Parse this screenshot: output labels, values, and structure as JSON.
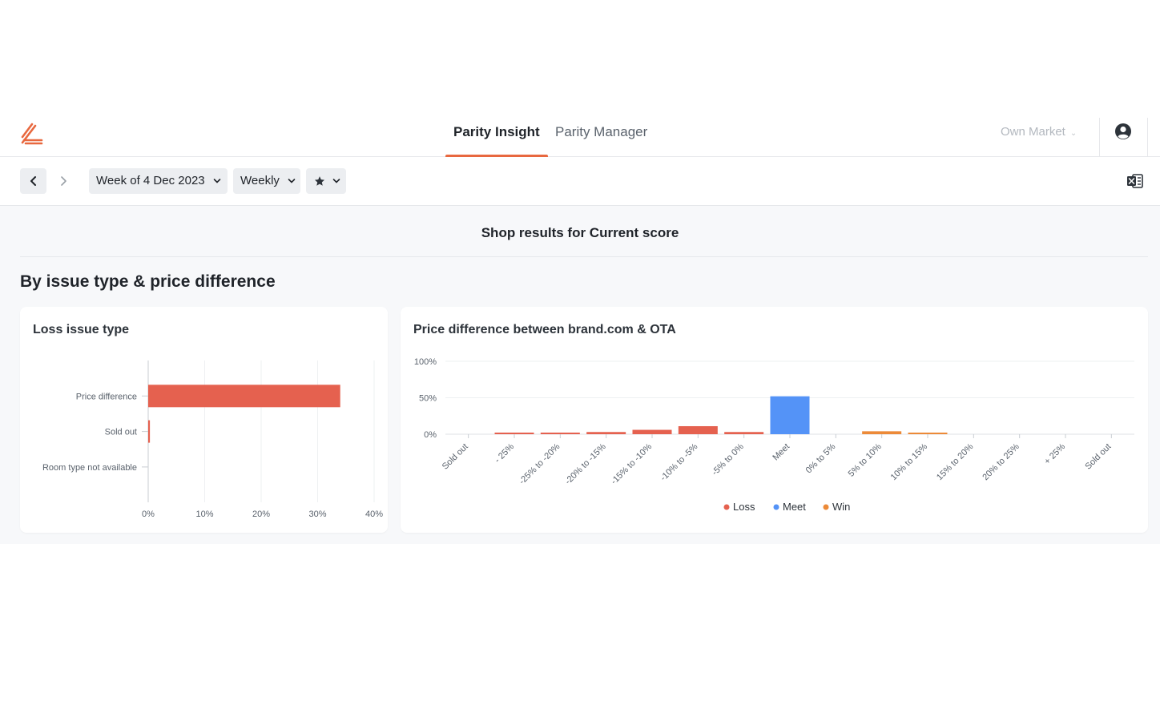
{
  "header": {
    "logo_icon": "brand-logo-icon",
    "tabs": [
      {
        "label": "Parity Insight",
        "active": true
      },
      {
        "label": "Parity Manager",
        "active": false
      }
    ],
    "market_select": "Own Market",
    "avatar_icon": "user-circle-icon"
  },
  "toolbar": {
    "prev_icon": "chevron-left-icon",
    "next_icon": "chevron-right-icon",
    "week_select": "Week of 4 Dec 2023",
    "period_select": "Weekly",
    "favorite_icon": "star-icon",
    "export_icon": "excel-export-icon"
  },
  "main": {
    "results_title": "Shop results for Current score",
    "section_title": "By issue type & price difference"
  },
  "colors": {
    "accent": "#e8683f",
    "loss": "#e5614f",
    "meet": "#5493f7",
    "win": "#ec8a38"
  },
  "chart_data": [
    {
      "type": "bar",
      "orientation": "horizontal",
      "title": "Loss issue type",
      "categories": [
        "Price difference",
        "Sold out",
        "Room type not available"
      ],
      "values": [
        34,
        0.3,
        0
      ],
      "xlim": [
        0,
        40
      ],
      "x_ticks": [
        "0%",
        "10%",
        "20%",
        "30%",
        "40%"
      ],
      "grid": true,
      "color": "#e5614f"
    },
    {
      "type": "bar",
      "title": "Price difference between brand.com & OTA",
      "categories": [
        "Sold out",
        "- 25%",
        "-25% to -20%",
        "-20% to -15%",
        "-15% to -10%",
        "-10% to -5%",
        "-5% to 0%",
        "Meet",
        "0% to 5%",
        "5% to 10%",
        "10% to 15%",
        "15% to 20%",
        "20% to 25%",
        "+ 25%",
        "Sold out"
      ],
      "series": [
        {
          "name": "Loss",
          "color": "#e5614f",
          "values": [
            0,
            2,
            1,
            3,
            6,
            11,
            3,
            0,
            0,
            0,
            0,
            0,
            0,
            0,
            0
          ]
        },
        {
          "name": "Meet",
          "color": "#5493f7",
          "values": [
            0,
            0,
            0,
            0,
            0,
            0,
            0,
            52,
            0,
            0,
            0,
            0,
            0,
            0,
            0
          ]
        },
        {
          "name": "Win",
          "color": "#ec8a38",
          "values": [
            0,
            0,
            0,
            0,
            0,
            0,
            0,
            0,
            0,
            4,
            1,
            0,
            0,
            0,
            0
          ]
        }
      ],
      "ylim": [
        0,
        100
      ],
      "y_ticks": [
        "0%",
        "50%",
        "100%"
      ],
      "grid": true,
      "legend": "bottom-center"
    }
  ]
}
